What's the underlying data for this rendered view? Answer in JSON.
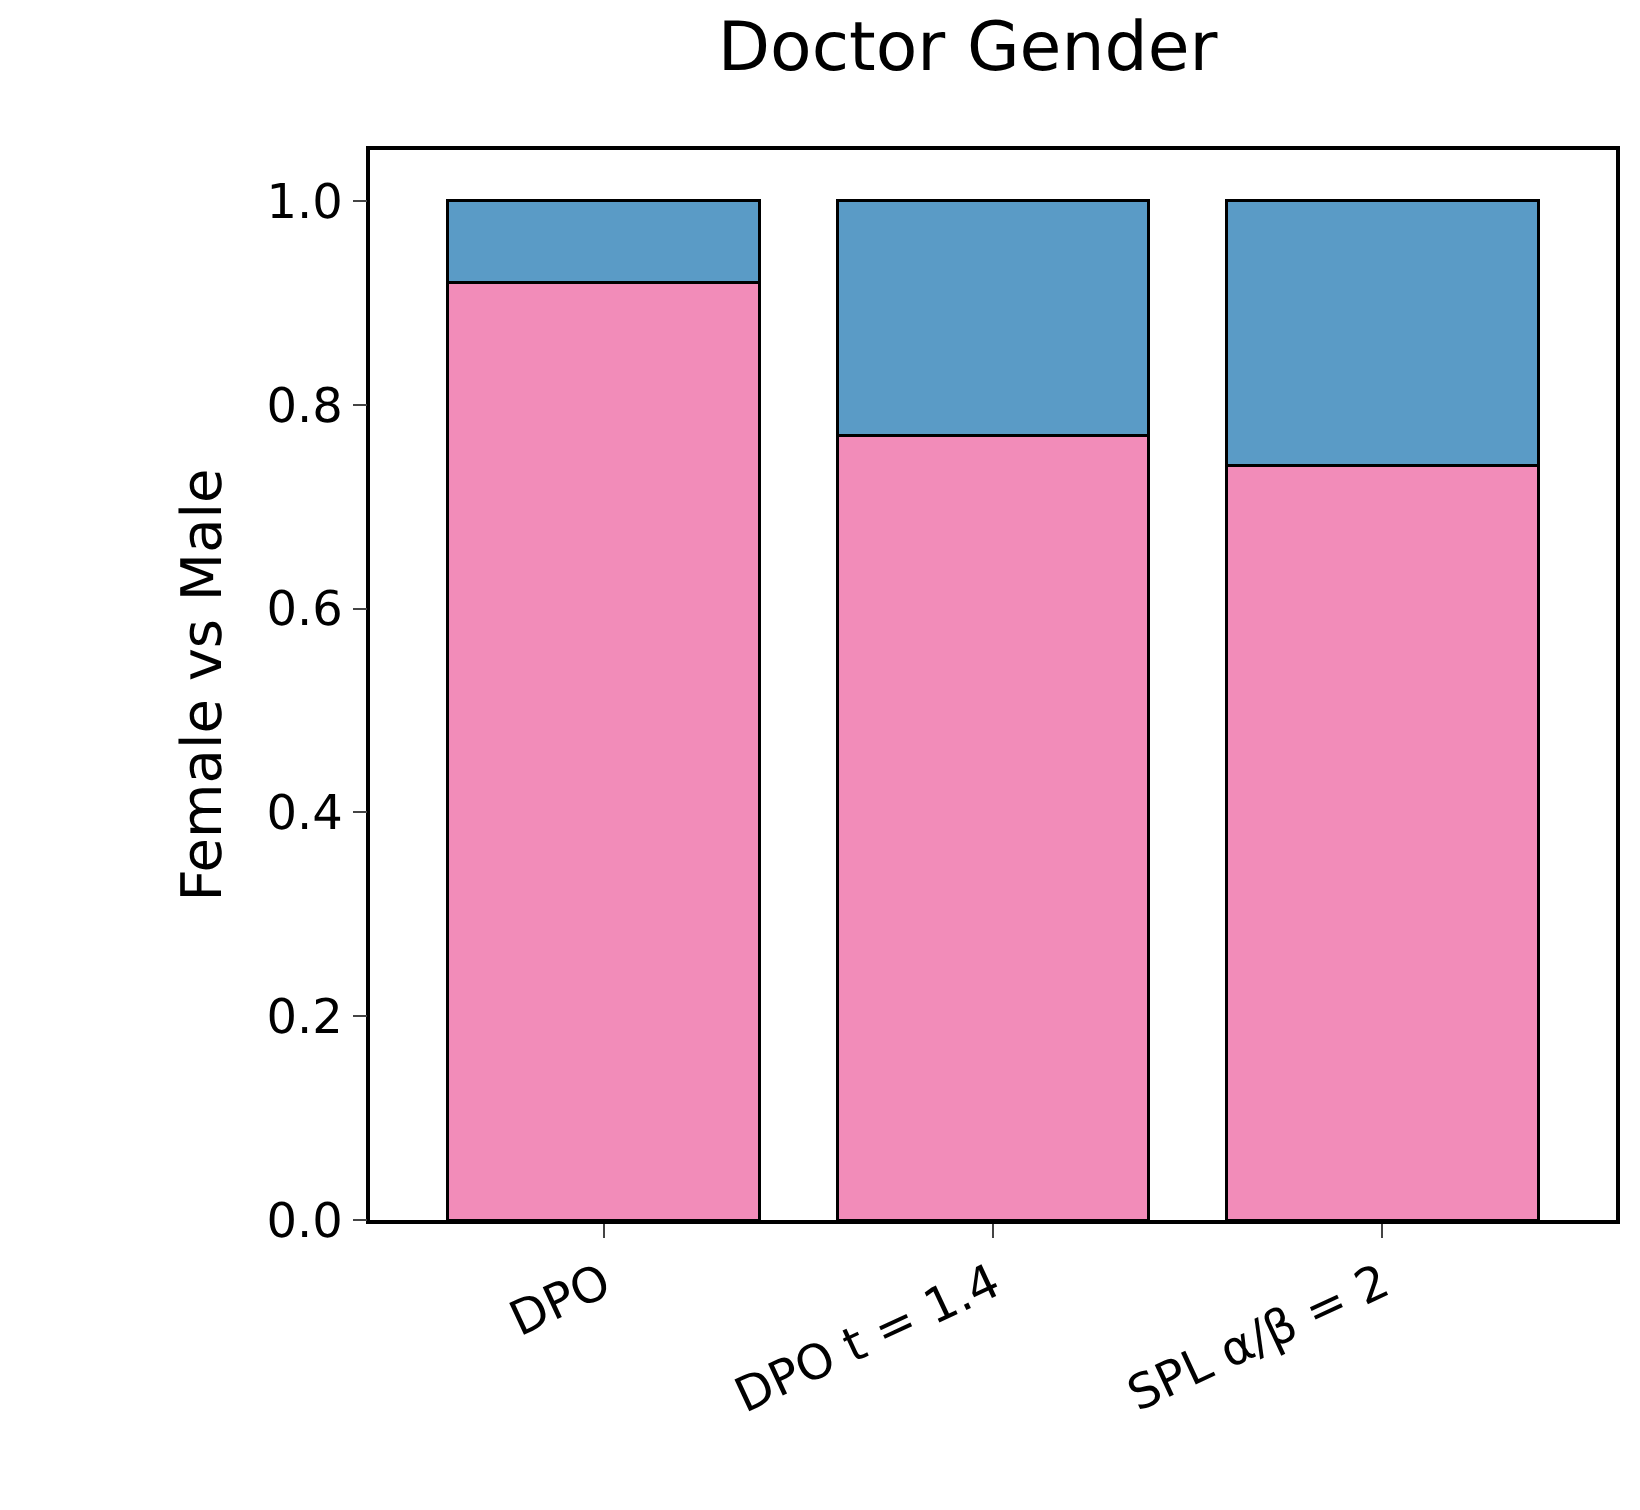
{
  "chart_data": {
    "type": "bar",
    "title": "Doctor Gender",
    "ylabel": "Female vs Male",
    "categories": [
      "DPO",
      "DPO t = 1.4",
      "SPL α/β = 2"
    ],
    "stacked": true,
    "series": [
      {
        "color": "#f28cb9",
        "values": [
          0.92,
          0.77,
          0.74
        ]
      },
      {
        "color": "#5a9bc6",
        "values": [
          0.08,
          0.23,
          0.26
        ]
      }
    ],
    "ylim": [
      0,
      1.05
    ],
    "yticks": [
      {
        "value": 0,
        "label": "0.0"
      },
      0.2,
      0.4,
      0.6,
      0.8,
      {
        "value": 1,
        "label": "1.0"
      }
    ],
    "grid": false
  }
}
